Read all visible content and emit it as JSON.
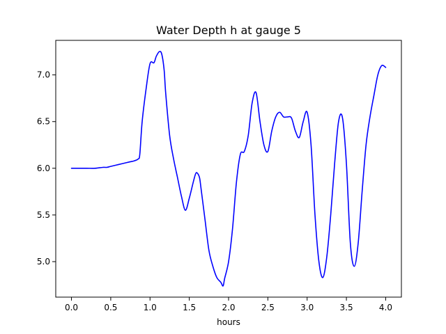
{
  "chart_data": {
    "type": "line",
    "title": "Water Depth h at gauge 5",
    "xlabel": "hours",
    "ylabel": "",
    "xlim": [
      -0.2,
      4.2
    ],
    "ylim": [
      4.62,
      7.37
    ],
    "xticks": [
      0.0,
      0.5,
      1.0,
      1.5,
      2.0,
      2.5,
      3.0,
      3.5,
      4.0
    ],
    "yticks": [
      5.0,
      5.5,
      6.0,
      6.5,
      7.0
    ],
    "xtick_labels": [
      "0.0",
      "0.5",
      "1.0",
      "1.5",
      "2.0",
      "2.5",
      "3.0",
      "3.5",
      "4.0"
    ],
    "ytick_labels": [
      "5.0",
      "5.5",
      "6.0",
      "6.5",
      "7.0"
    ],
    "grid": false,
    "legend": "none",
    "line_color": "#0000ff",
    "series": [
      {
        "x": [
          0.0,
          0.1,
          0.2,
          0.3,
          0.4,
          0.45,
          0.5,
          0.6,
          0.7,
          0.75,
          0.8,
          0.85,
          0.87,
          0.9,
          0.95,
          1.0,
          1.05,
          1.08,
          1.12,
          1.15,
          1.18,
          1.2,
          1.25,
          1.3,
          1.35,
          1.4,
          1.45,
          1.5,
          1.55,
          1.58,
          1.6,
          1.63,
          1.65,
          1.7,
          1.75,
          1.8,
          1.85,
          1.9,
          1.93,
          1.95,
          2.0,
          2.05,
          2.1,
          2.15,
          2.2,
          2.25,
          2.3,
          2.35,
          2.4,
          2.45,
          2.5,
          2.55,
          2.6,
          2.65,
          2.7,
          2.75,
          2.8,
          2.85,
          2.9,
          2.95,
          3.0,
          3.05,
          3.1,
          3.15,
          3.2,
          3.25,
          3.3,
          3.35,
          3.4,
          3.45,
          3.5,
          3.55,
          3.6,
          3.65,
          3.7,
          3.75,
          3.8,
          3.85,
          3.9,
          3.95,
          4.0
        ],
        "y": [
          6.0,
          6.0,
          6.0,
          6.0,
          6.01,
          6.01,
          6.02,
          6.04,
          6.06,
          6.07,
          6.08,
          6.1,
          6.15,
          6.5,
          6.85,
          7.12,
          7.13,
          7.2,
          7.25,
          7.22,
          7.05,
          6.8,
          6.35,
          6.1,
          5.9,
          5.7,
          5.55,
          5.68,
          5.85,
          5.94,
          5.95,
          5.9,
          5.78,
          5.45,
          5.12,
          4.95,
          4.83,
          4.78,
          4.74,
          4.82,
          5.0,
          5.35,
          5.85,
          6.15,
          6.18,
          6.35,
          6.7,
          6.81,
          6.5,
          6.25,
          6.18,
          6.4,
          6.55,
          6.6,
          6.55,
          6.55,
          6.54,
          6.4,
          6.33,
          6.5,
          6.6,
          6.25,
          5.5,
          5.0,
          4.83,
          5.05,
          5.5,
          6.05,
          6.5,
          6.54,
          6.05,
          5.2,
          4.95,
          5.2,
          5.75,
          6.25,
          6.55,
          6.78,
          7.0,
          7.1,
          7.08
        ]
      }
    ]
  }
}
